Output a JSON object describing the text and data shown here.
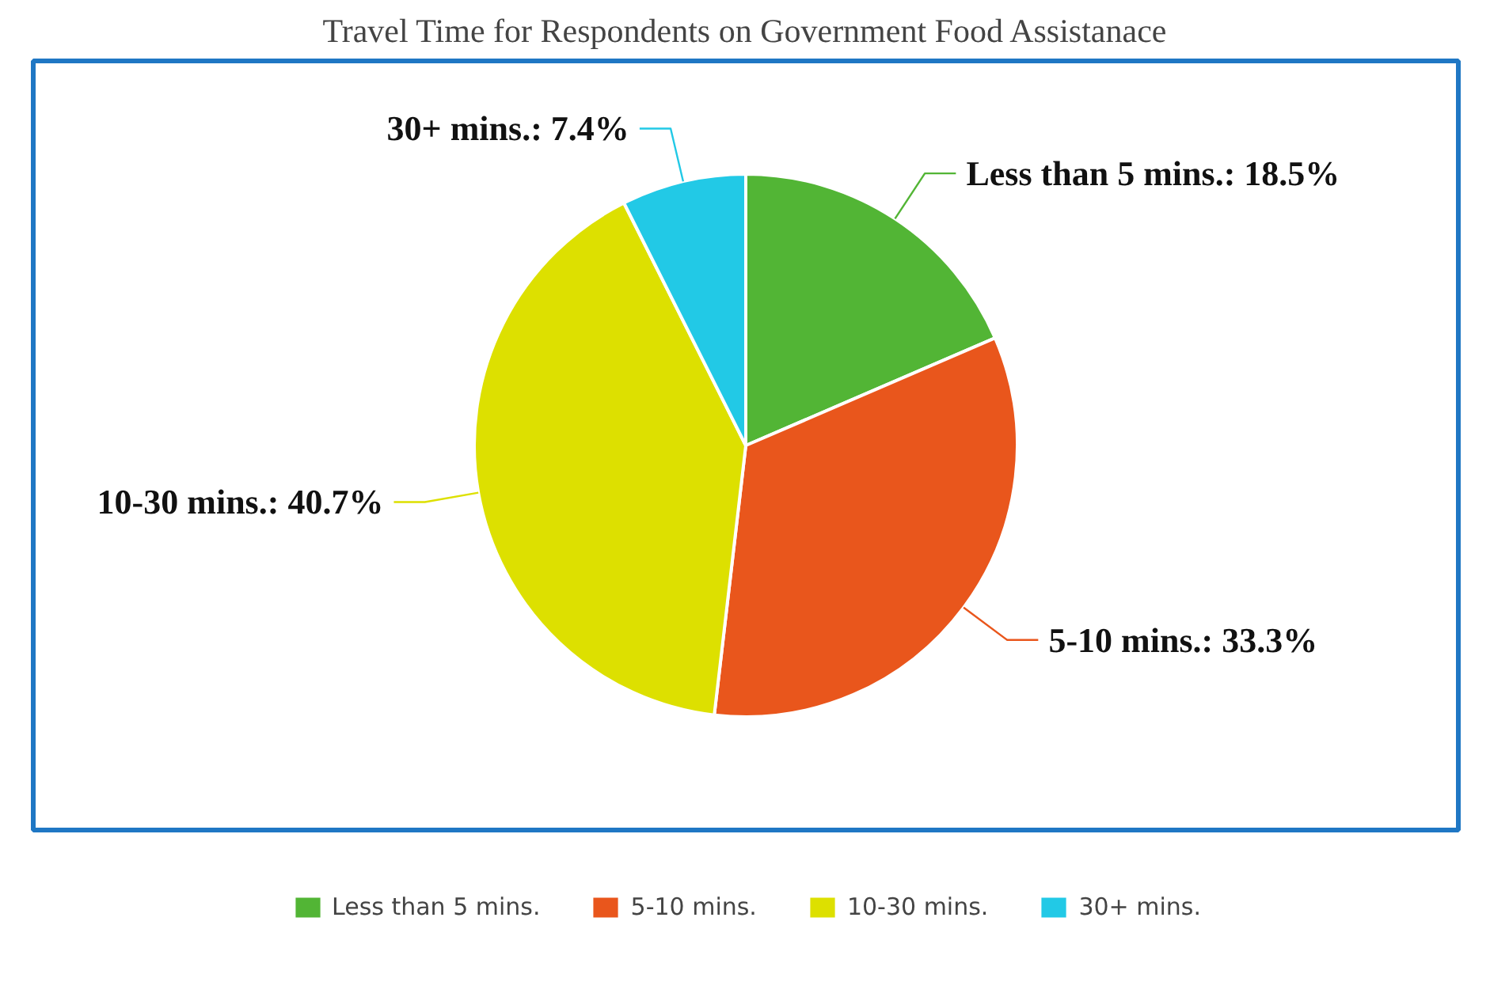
{
  "chart_data": {
    "type": "pie",
    "title": "Travel Time for Respondents on Government Food Assistanace",
    "categories": [
      "Less than 5 mins.",
      "5-10 mins.",
      "10-30 mins.",
      "30+ mins."
    ],
    "values": [
      18.5,
      33.3,
      40.7,
      7.4
    ],
    "colors": [
      "#52b535",
      "#e9561c",
      "#dde000",
      "#22c9e6"
    ],
    "value_labels": [
      "Less than 5 mins.: 18.5%",
      "5-10 mins.: 33.3%",
      "10-30 mins.: 40.7%",
      "30+ mins.: 7.4%"
    ],
    "legend": "bottom"
  }
}
